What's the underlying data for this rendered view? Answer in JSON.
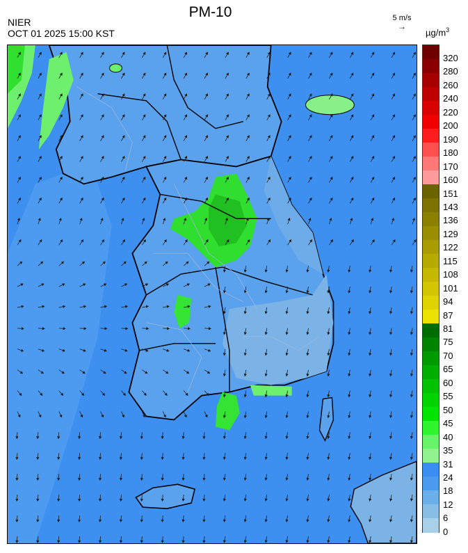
{
  "header": {
    "title": "PM-10",
    "agency": "NIER",
    "timestamp": "OCT 01 2025 15:00 KST",
    "wind_reference": "5 m/s",
    "unit": "µg/m",
    "unit_exponent": "3"
  },
  "legend": {
    "labels": [
      "320",
      "280",
      "260",
      "240",
      "220",
      "200",
      "190",
      "180",
      "170",
      "160",
      "151",
      "143",
      "136",
      "129",
      "122",
      "115",
      "108",
      "101",
      "94",
      "87",
      "81",
      "75",
      "70",
      "65",
      "60",
      "55",
      "50",
      "45",
      "40",
      "35",
      "31",
      "24",
      "18",
      "12",
      "6",
      "0"
    ],
    "colors": [
      "#6e0000",
      "#8a0000",
      "#a60000",
      "#bf0000",
      "#d80000",
      "#f00000",
      "#ff1c1c",
      "#ff5050",
      "#ff7878",
      "#ff9a9a",
      "#6b6200",
      "#7d7200",
      "#8c8000",
      "#9a8e00",
      "#a89c00",
      "#b6aa00",
      "#c4b800",
      "#d2c600",
      "#e0d400",
      "#ece200",
      "#006d00",
      "#008400",
      "#009a00",
      "#00ae00",
      "#00c200",
      "#00d400",
      "#00e400",
      "#2ef52e",
      "#68f468",
      "#90f390",
      "#3a8ef2",
      "#4a9af0",
      "#6aaeea",
      "#88bee4",
      "#a8d0e8"
    ]
  },
  "map_colors": {
    "sea_base": "#3d8ff0",
    "land_base": "#5ea5ec",
    "light_region": "#7bb3e7",
    "green_region": "#34e334",
    "pale_green": "#88f088",
    "boundary": "#000000",
    "sub_boundary": "#9aaed0"
  }
}
